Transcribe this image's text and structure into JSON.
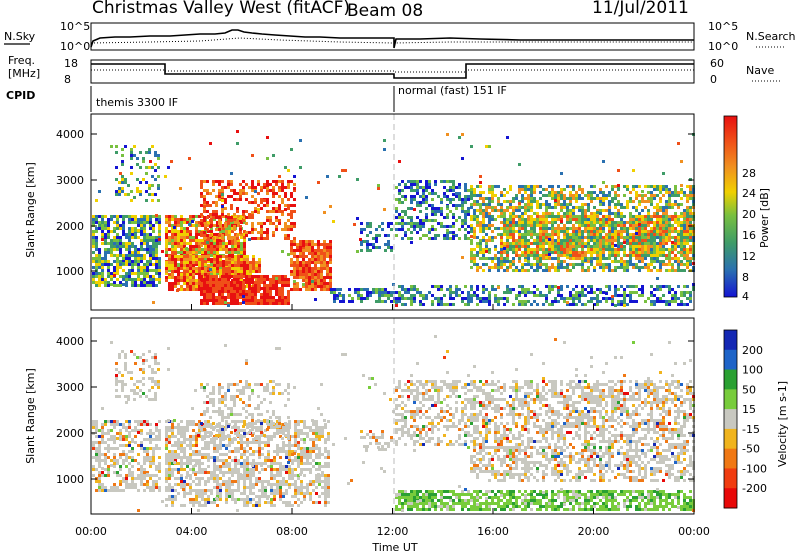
{
  "header": {
    "station": "Christmas Valley West (fitACF)",
    "beam": "Beam 08",
    "date": "11/Jul/2011"
  },
  "sky_panel": {
    "left_label": "N.Sky",
    "left_ticks": [
      "10^5",
      "10^0"
    ],
    "right_ticks": [
      "10^5",
      "10^0"
    ],
    "right_label": "N.Search"
  },
  "freq_panel": {
    "left_label_line1": "Freq.",
    "left_label_line2": "[MHz]",
    "left_ticks": [
      "18",
      "8"
    ],
    "right_ticks": [
      "60",
      "0"
    ],
    "right_label": "Nave"
  },
  "cpid_panel": {
    "label": "CPID",
    "segments": [
      "themis 3300 IF",
      "normal (fast) 151 IF"
    ]
  },
  "x_axis": {
    "title": "Time UT",
    "ticks": [
      "00:00",
      "04:00",
      "08:00",
      "12:00",
      "16:00",
      "20:00",
      "00:00"
    ]
  },
  "colors": {
    "power_scale": [
      "#1414d2",
      "#2a70b0",
      "#3f9c68",
      "#78c040",
      "#f0d000",
      "#f09020",
      "#f05018",
      "#e81010"
    ],
    "velocity_scale": [
      "#1428b4",
      "#1e64c8",
      "#2aa032",
      "#78cc3c",
      "#c8c8c0",
      "#f0b41e",
      "#f07814",
      "#f03c10",
      "#e80808"
    ]
  },
  "chart_data": [
    {
      "type": "heatmap",
      "title": "",
      "xlabel": "Time UT",
      "ylabel": "Slant Range [km]",
      "yticks": [
        "4000",
        "3000",
        "2000",
        "1000"
      ],
      "colorbar_label": "Power [dB]",
      "colorbar_ticks": [
        "28",
        "24",
        "20",
        "16",
        "12",
        "8",
        "4"
      ],
      "xlim": [
        "00:00",
        "24:00"
      ],
      "ylim": [
        180,
        4500
      ]
    },
    {
      "type": "heatmap",
      "title": "",
      "xlabel": "Time UT",
      "ylabel": "Slant Range [km]",
      "yticks": [
        "4000",
        "3000",
        "2000",
        "1000"
      ],
      "colorbar_label": "Velocity [m s-1]",
      "colorbar_ticks": [
        "200",
        "100",
        "50",
        "15",
        "-15",
        "-50",
        "-100",
        "-200"
      ],
      "xlim": [
        "00:00",
        "24:00"
      ],
      "ylim": [
        180,
        4500
      ]
    }
  ]
}
